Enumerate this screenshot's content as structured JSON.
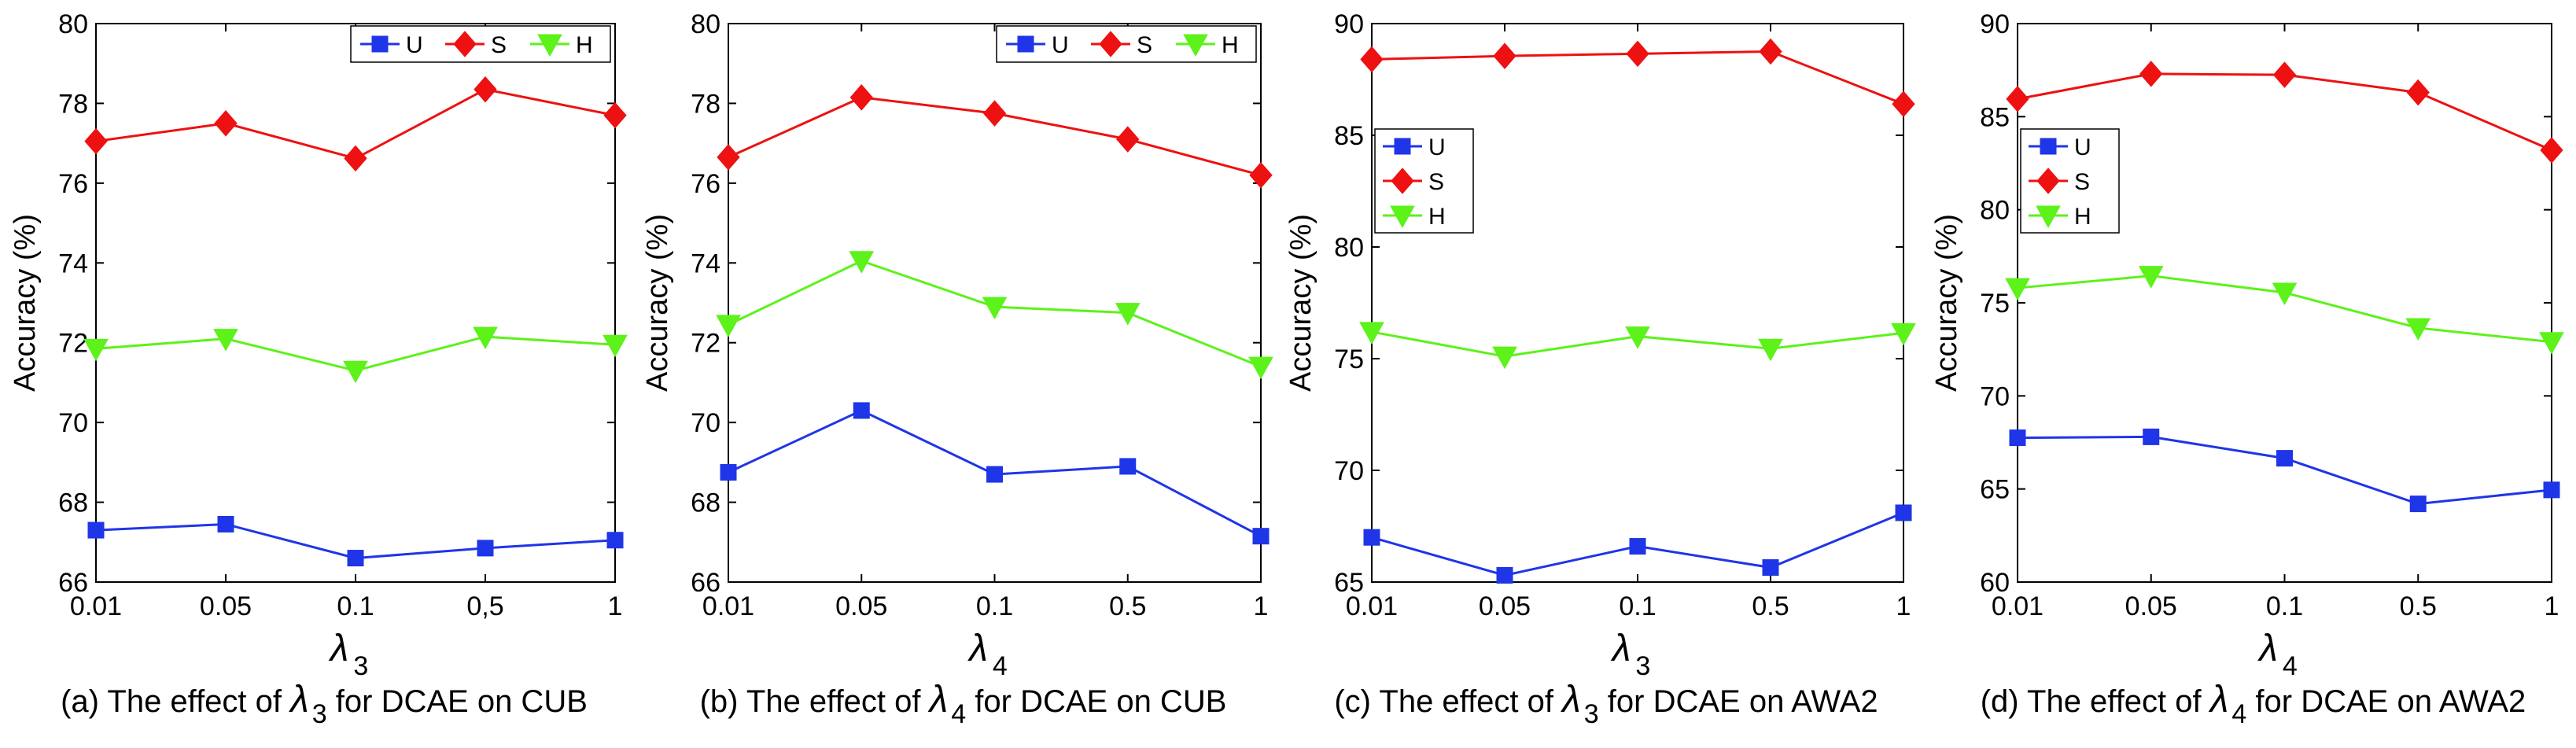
{
  "colors": {
    "U": "#1f35e8",
    "S": "#ee1111",
    "H": "#5cf21a"
  },
  "chart_data": [
    {
      "type": "line",
      "categories": [
        "0.01",
        "0.05",
        "0.1",
        "0,5",
        "1"
      ],
      "series": [
        {
          "name": "U",
          "values": [
            67.3,
            67.45,
            66.6,
            66.85,
            67.05
          ]
        },
        {
          "name": "S",
          "values": [
            77.05,
            77.5,
            76.62,
            78.35,
            77.7
          ]
        },
        {
          "name": "H",
          "values": [
            71.85,
            72.1,
            71.3,
            72.15,
            71.95
          ]
        }
      ],
      "ylim": [
        66,
        80
      ],
      "yticks": [
        "66",
        "68",
        "70",
        "72",
        "74",
        "76",
        "78",
        "80"
      ],
      "ylabel": "Accuracy (%)",
      "xlabel_symbol": "λ",
      "xlabel_sub": "3",
      "legend_position": "top-right",
      "caption_prefix": "(a)  The effect of  ",
      "caption_symbol": "λ",
      "caption_sub": "3",
      "caption_suffix": " for DCAE  on CUB"
    },
    {
      "type": "line",
      "categories": [
        "0.01",
        "0.05",
        "0.1",
        "0.5",
        "1"
      ],
      "series": [
        {
          "name": "U",
          "values": [
            68.75,
            70.3,
            68.7,
            68.9,
            67.15
          ]
        },
        {
          "name": "S",
          "values": [
            76.65,
            78.15,
            77.75,
            77.1,
            76.2
          ]
        },
        {
          "name": "H",
          "values": [
            72.45,
            74.05,
            72.9,
            72.75,
            71.4
          ]
        }
      ],
      "ylim": [
        66,
        80
      ],
      "yticks": [
        "66",
        "68",
        "70",
        "72",
        "74",
        "76",
        "78",
        "80"
      ],
      "ylabel": "Accuracy (%)",
      "xlabel_symbol": "λ",
      "xlabel_sub": "4",
      "legend_position": "top-right",
      "caption_prefix": "(b) The effect of  ",
      "caption_symbol": "λ",
      "caption_sub": "4",
      "caption_suffix": " for DCAE on CUB"
    },
    {
      "type": "line",
      "categories": [
        "0.01",
        "0.05",
        "0.1",
        "0.5",
        "1"
      ],
      "series": [
        {
          "name": "U",
          "values": [
            67.0,
            65.3,
            66.6,
            65.65,
            68.1
          ]
        },
        {
          "name": "S",
          "values": [
            88.4,
            88.55,
            88.65,
            88.75,
            86.4
          ]
        },
        {
          "name": "H",
          "values": [
            76.2,
            75.1,
            76.0,
            75.45,
            76.15
          ]
        }
      ],
      "ylim": [
        65,
        90
      ],
      "yticks": [
        "65",
        "70",
        "75",
        "80",
        "85",
        "90"
      ],
      "ylabel": "Accuracy (%)",
      "xlabel_symbol": "λ",
      "xlabel_sub": "3",
      "legend_position": "upper-left",
      "caption_prefix": "(c) The effect of  ",
      "caption_symbol": "λ",
      "caption_sub": "3",
      "caption_suffix": " for DCAE on AWA2"
    },
    {
      "type": "line",
      "categories": [
        "0.01",
        "0.05",
        "0.1",
        "0.5",
        "1"
      ],
      "series": [
        {
          "name": "U",
          "values": [
            67.75,
            67.8,
            66.65,
            64.2,
            64.95
          ]
        },
        {
          "name": "S",
          "values": [
            85.95,
            87.3,
            87.25,
            86.3,
            83.2
          ]
        },
        {
          "name": "H",
          "values": [
            75.8,
            76.45,
            75.55,
            73.65,
            72.9
          ]
        }
      ],
      "ylim": [
        60,
        90
      ],
      "yticks": [
        "60",
        "65",
        "70",
        "75",
        "80",
        "85",
        "90"
      ],
      "ylabel": "Accuracy (%)",
      "xlabel_symbol": "λ",
      "xlabel_sub": "4",
      "legend_position": "upper-left",
      "caption_prefix": "(d) The effect of  ",
      "caption_symbol": "λ",
      "caption_sub": "4",
      "caption_suffix": " for DCAE on AWA2"
    }
  ]
}
